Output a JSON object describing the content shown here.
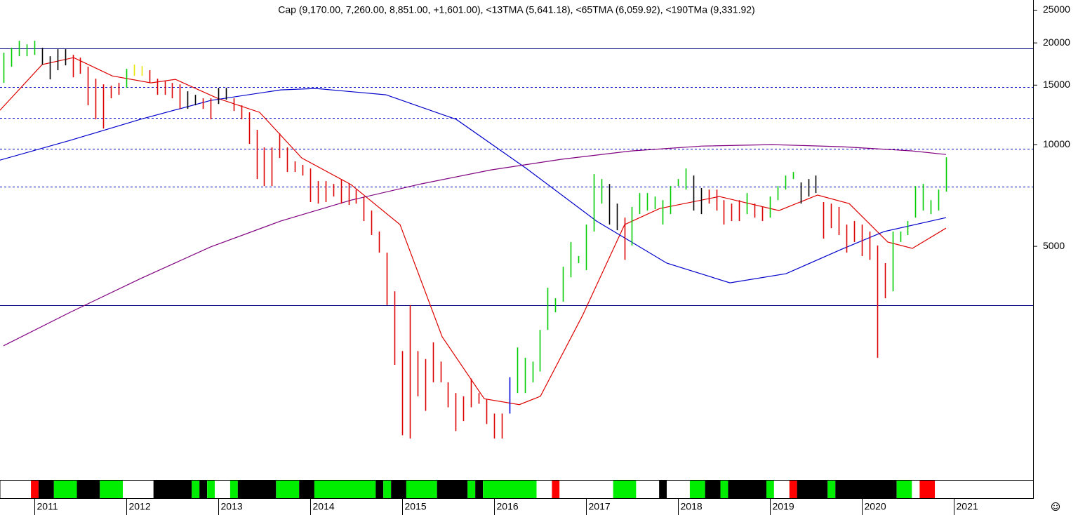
{
  "chart_data": {
    "type": "ohlc",
    "title": "Cap (9,170.00, 7,260.00, 8,851.00, +1,601.00), <13TMA (5,641.18), <65TMA (6,059.92), <190TMa (9,331.92)",
    "log_scale": true,
    "xlim": [
      2010.626,
      2021.863
    ],
    "xticks": [
      2011,
      2012,
      2013,
      2014,
      2015,
      2016,
      2017,
      2018,
      2019,
      2020,
      2021
    ],
    "ylim": [
      1018,
      26790
    ],
    "yticks": [
      25000,
      20000,
      15000,
      10000,
      5000
    ],
    "bars": {
      "x": [
        2010.667,
        2010.75,
        2010.833,
        2010.917,
        2011,
        2011.083,
        2011.167,
        2011.25,
        2011.333,
        2011.417,
        2011.5,
        2011.583,
        2011.667,
        2011.75,
        2011.833,
        2011.917,
        2012,
        2012.083,
        2012.167,
        2012.25,
        2012.333,
        2012.417,
        2012.5,
        2012.583,
        2012.667,
        2012.75,
        2012.833,
        2012.917,
        2013,
        2013.083,
        2013.167,
        2013.25,
        2013.333,
        2013.417,
        2013.5,
        2013.583,
        2013.667,
        2013.75,
        2013.833,
        2013.917,
        2014,
        2014.083,
        2014.167,
        2014.25,
        2014.333,
        2014.417,
        2014.5,
        2014.583,
        2014.667,
        2014.75,
        2014.833,
        2014.917,
        2015,
        2015.083,
        2015.167,
        2015.25,
        2015.333,
        2015.417,
        2015.5,
        2015.583,
        2015.667,
        2015.75,
        2015.833,
        2015.917,
        2016,
        2016.083,
        2016.167,
        2016.25,
        2016.333,
        2016.417,
        2016.5,
        2016.583,
        2016.667,
        2016.75,
        2016.833,
        2016.917,
        2017,
        2017.083,
        2017.167,
        2017.25,
        2017.333,
        2017.417,
        2017.5,
        2017.583,
        2017.667,
        2017.75,
        2017.833,
        2017.917,
        2018,
        2018.083,
        2018.167,
        2018.25,
        2018.333,
        2018.417,
        2018.5,
        2018.583,
        2018.667,
        2018.75,
        2018.833,
        2018.917,
        2019,
        2019.083,
        2019.167,
        2019.25,
        2019.333,
        2019.417,
        2019.5,
        2019.583,
        2019.667,
        2019.75,
        2019.833,
        2019.917,
        2020,
        2020.083,
        2020.167,
        2020.25,
        2020.333,
        2020.417,
        2020.5,
        2020.583,
        2020.667,
        2020.75,
        2020.833,
        2020.917
      ],
      "high": [
        18700,
        19340,
        20290,
        19800,
        20290,
        19340,
        18260,
        19160,
        19160,
        18440,
        18090,
        17000,
        15670,
        15080,
        14940,
        15230,
        16760,
        17250,
        17080,
        16600,
        15670,
        15450,
        15230,
        15080,
        14380,
        14040,
        13710,
        13710,
        14730,
        14730,
        13710,
        13070,
        12460,
        11060,
        9810,
        9810,
        10800,
        9810,
        8920,
        8710,
        8500,
        7800,
        7800,
        7650,
        7910,
        7650,
        7360,
        7020,
        6380,
        5530,
        4790,
        3680,
        2450,
        3350,
        2450,
        2320,
        2600,
        2280,
        1980,
        1840,
        1800,
        2030,
        1840,
        1760,
        1600,
        1600,
        2050,
        2510,
        2340,
        2280,
        2830,
        3770,
        3510,
        4350,
        5150,
        4680,
        5800,
        8180,
        7910,
        7650,
        6690,
        6080,
        6540,
        7190,
        7190,
        7020,
        6850,
        7540,
        7910,
        8500,
        8100,
        7440,
        7360,
        7360,
        6850,
        6690,
        6850,
        7190,
        6690,
        6540,
        7020,
        7540,
        8100,
        8300,
        7730,
        7910,
        8100,
        6760,
        6690,
        6540,
        5800,
        5940,
        5800,
        5530,
        5030,
        4460,
        5530,
        5530,
        5940,
        7540,
        7650,
        6850,
        7360,
        9170
      ],
      "low": [
        15230,
        17000,
        18260,
        18260,
        18440,
        17250,
        15600,
        16600,
        17160,
        15820,
        16210,
        13070,
        11880,
        11160,
        13710,
        14040,
        14730,
        15970,
        15970,
        15230,
        14040,
        14040,
        13710,
        12760,
        12760,
        13070,
        12760,
        11880,
        13190,
        13580,
        12580,
        11880,
        10050,
        7910,
        7540,
        7540,
        9130,
        8300,
        8300,
        8100,
        6760,
        6690,
        6760,
        7020,
        6690,
        6630,
        6690,
        5940,
        5400,
        4790,
        3350,
        2230,
        1380,
        1350,
        1800,
        1630,
        1980,
        1980,
        1670,
        1420,
        1520,
        1670,
        1710,
        1490,
        1350,
        1350,
        1600,
        1840,
        1840,
        1980,
        2130,
        2830,
        3190,
        3430,
        4050,
        4460,
        4250,
        5530,
        6690,
        5800,
        5580,
        4560,
        5030,
        6230,
        6380,
        6440,
        5800,
        6230,
        7540,
        7360,
        6380,
        6230,
        6690,
        6380,
        5800,
        5940,
        5940,
        6230,
        6080,
        5940,
        6080,
        6850,
        7360,
        7910,
        6690,
        7020,
        7190,
        5270,
        5660,
        5400,
        4790,
        5150,
        4680,
        4560,
        2340,
        3510,
        3680,
        5150,
        5400,
        6080,
        6380,
        6230,
        6380,
        7260
      ],
      "color_runs": [
        {
          "color": "#00cc00",
          "count": 5
        },
        {
          "color": "#000000",
          "count": 4
        },
        {
          "color": "#dd0000",
          "count": 7
        },
        {
          "color": "#00cc00",
          "count": 1
        },
        {
          "color": "#e6e600",
          "count": 2
        },
        {
          "color": "#dd0000",
          "count": 5
        },
        {
          "color": "#000000",
          "count": 2
        },
        {
          "color": "#dd0000",
          "count": 2
        },
        {
          "color": "#000000",
          "count": 2
        },
        {
          "color": "#dd0000",
          "count": 36
        },
        {
          "color": "#0000dd",
          "count": 1
        },
        {
          "color": "#00cc00",
          "count": 12
        },
        {
          "color": "#000000",
          "count": 2
        },
        {
          "color": "#dd0000",
          "count": 1
        },
        {
          "color": "#00cc00",
          "count": 8
        },
        {
          "color": "#000000",
          "count": 2
        },
        {
          "color": "#dd0000",
          "count": 5
        },
        {
          "color": "#00cc00",
          "count": 1
        },
        {
          "color": "#dd0000",
          "count": 2
        },
        {
          "color": "#00cc00",
          "count": 4
        },
        {
          "color": "#000000",
          "count": 3
        },
        {
          "color": "#dd0000",
          "count": 9
        },
        {
          "color": "#00cc00",
          "count": 8
        }
      ]
    },
    "lines": [
      {
        "color": "#dd0000",
        "x": [
          2010.626,
          2011.084,
          2011.427,
          2011.847,
          2012.267,
          2012.534,
          2012.992,
          2013.45,
          2013.908,
          2014.443,
          2014.977,
          2015.435,
          2015.893,
          2016.275,
          2016.504,
          2016.962,
          2017.42,
          2017.802,
          2018.45,
          2019.099,
          2019.519,
          2019.863,
          2020.282,
          2020.55,
          2020.916
        ],
        "values": [
          12640,
          17250,
          18090,
          15970,
          15230,
          15600,
          13710,
          12460,
          9130,
          7620,
          5800,
          2700,
          1770,
          1700,
          1800,
          3120,
          5800,
          6470,
          7020,
          6380,
          7090,
          6690,
          5150,
          4930,
          5660
        ]
      },
      {
        "color": "#0000cc",
        "x": [
          2010.626,
          2011.389,
          2012.153,
          2012.916,
          2013.679,
          2014.061,
          2014.824,
          2015.588,
          2016.351,
          2017.115,
          2017.878,
          2018.565,
          2019.176,
          2019.786,
          2020.244,
          2020.916
        ],
        "values": [
          9000,
          10290,
          11880,
          13510,
          14520,
          14660,
          14040,
          11880,
          8500,
          5940,
          4460,
          3900,
          4150,
          4910,
          5530,
          6080
        ]
      },
      {
        "color": "#800080",
        "x": [
          2010.664,
          2011.389,
          2012.153,
          2012.916,
          2013.679,
          2014.443,
          2015.206,
          2015.969,
          2016.733,
          2017.496,
          2018.26,
          2019.023,
          2019.786,
          2020.55,
          2020.916
        ],
        "values": [
          2540,
          3190,
          4010,
          4980,
          5940,
          6850,
          7650,
          8420,
          9050,
          9580,
          9900,
          10000,
          9860,
          9580,
          9350
        ]
      }
    ],
    "levels": [
      {
        "value": 19300,
        "style": "solid",
        "color": "#000080"
      },
      {
        "value": 14800,
        "style": "dashed",
        "color": "#0000cc"
      },
      {
        "value": 12000,
        "style": "dashed",
        "color": "#0000cc"
      },
      {
        "value": 9700,
        "style": "dashed",
        "color": "#0000cc"
      },
      {
        "value": 7500,
        "style": "dashed",
        "color": "#0000cc"
      },
      {
        "value": 3350,
        "style": "solid",
        "color": "#000080"
      }
    ],
    "strip": [
      {
        "color": "#ffffff",
        "count": 4
      },
      {
        "color": "#ff0000",
        "count": 1
      },
      {
        "color": "#000000",
        "count": 2
      },
      {
        "color": "#00ee00",
        "count": 3
      },
      {
        "color": "#000000",
        "count": 3
      },
      {
        "color": "#00ee00",
        "count": 3
      },
      {
        "color": "#ffffff",
        "count": 4
      },
      {
        "color": "#000000",
        "count": 5
      },
      {
        "color": "#00ee00",
        "count": 1
      },
      {
        "color": "#000000",
        "count": 1
      },
      {
        "color": "#00ee00",
        "count": 1
      },
      {
        "color": "#ffffff",
        "count": 2
      },
      {
        "color": "#00ee00",
        "count": 1
      },
      {
        "color": "#000000",
        "count": 5
      },
      {
        "color": "#00ee00",
        "count": 3
      },
      {
        "color": "#000000",
        "count": 2
      },
      {
        "color": "#00ee00",
        "count": 8
      },
      {
        "color": "#000000",
        "count": 1
      },
      {
        "color": "#00ee00",
        "count": 1
      },
      {
        "color": "#000000",
        "count": 2
      },
      {
        "color": "#00ee00",
        "count": 4
      },
      {
        "color": "#000000",
        "count": 4
      },
      {
        "color": "#00ee00",
        "count": 1
      },
      {
        "color": "#000000",
        "count": 1
      },
      {
        "color": "#00ee00",
        "count": 7
      },
      {
        "color": "#ffffff",
        "count": 2
      },
      {
        "color": "#ff0000",
        "count": 1
      },
      {
        "color": "#ffffff",
        "count": 7
      },
      {
        "color": "#00ee00",
        "count": 3
      },
      {
        "color": "#ffffff",
        "count": 3
      },
      {
        "color": "#000000",
        "count": 1
      },
      {
        "color": "#ffffff",
        "count": 3
      },
      {
        "color": "#00ee00",
        "count": 2
      },
      {
        "color": "#000000",
        "count": 2
      },
      {
        "color": "#00ee00",
        "count": 1
      },
      {
        "color": "#000000",
        "count": 5
      },
      {
        "color": "#00ee00",
        "count": 1
      },
      {
        "color": "#ffffff",
        "count": 2
      },
      {
        "color": "#ff0000",
        "count": 1
      },
      {
        "color": "#000000",
        "count": 4
      },
      {
        "color": "#00ee00",
        "count": 1
      },
      {
        "color": "#000000",
        "count": 8
      },
      {
        "color": "#00ee00",
        "count": 2
      },
      {
        "color": "#ffffff",
        "count": 1
      },
      {
        "color": "#ff0000",
        "count": 2
      },
      {
        "color": "#ffffff",
        "count": 2
      }
    ]
  }
}
